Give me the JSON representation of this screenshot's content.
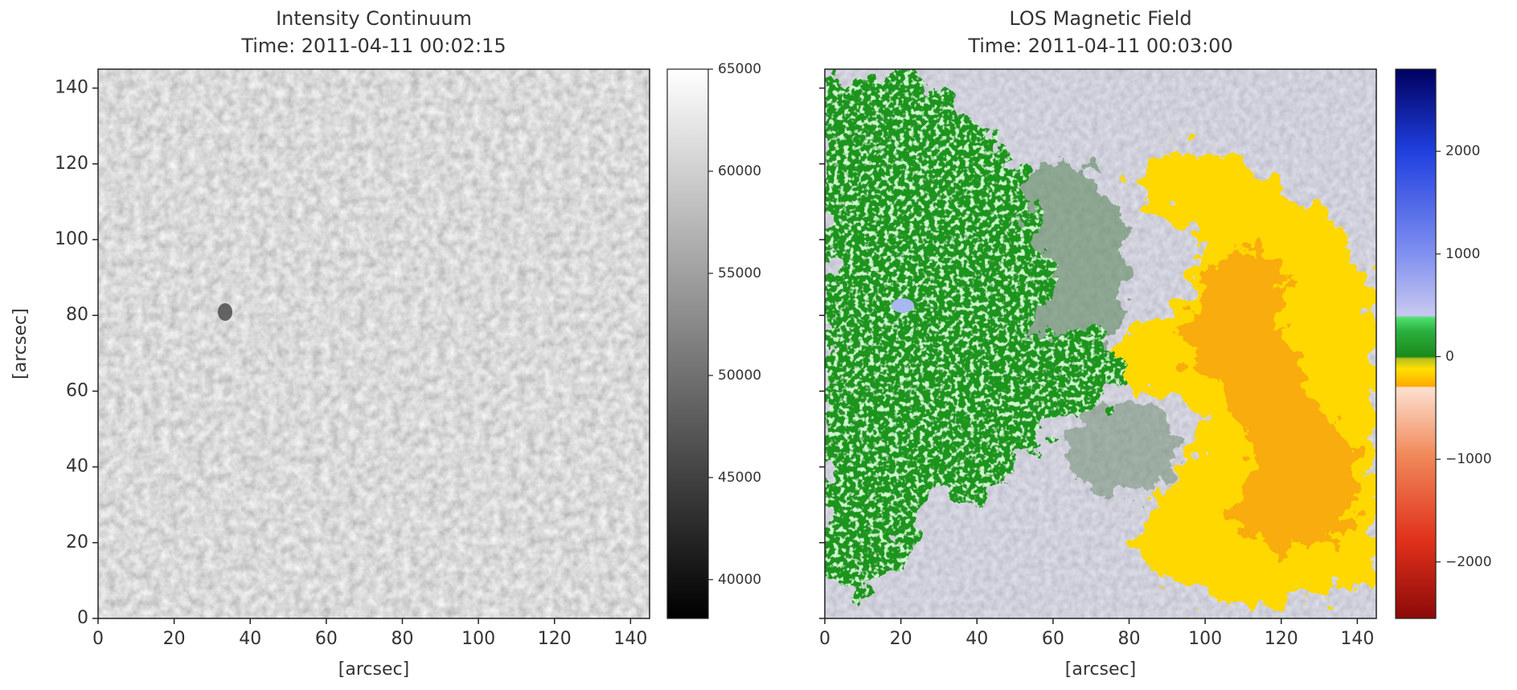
{
  "chart_data": [
    {
      "type": "heatmap",
      "title": "Intensity Continuum",
      "subtitle": "Time: 2011-04-11 00:02:15",
      "x_label": "[arcsec]",
      "y_label": "[arcsec]",
      "xlim": [
        0,
        145
      ],
      "ylim": [
        0,
        145
      ],
      "xticks": [
        0,
        20,
        40,
        60,
        80,
        100,
        120,
        140
      ],
      "yticks": [
        0,
        20,
        40,
        60,
        80,
        100,
        120,
        140
      ],
      "ytick_labels": true,
      "colorbar": {
        "lim": [
          38100,
          65000
        ],
        "ticks": [
          40000,
          45000,
          50000,
          55000,
          60000,
          65000
        ],
        "colormap": [
          {
            "value": 38100,
            "color": "#000000"
          },
          {
            "value": 65000,
            "color": "#ffffff"
          }
        ]
      }
    },
    {
      "type": "heatmap",
      "title": "LOS Magnetic Field",
      "subtitle": "Time: 2011-04-11 00:03:00",
      "x_label": "[arcsec]",
      "xlim": [
        0,
        145
      ],
      "ylim": [
        0,
        145
      ],
      "xticks": [
        0,
        20,
        40,
        60,
        80,
        100,
        120,
        140
      ],
      "yticks": [
        0,
        20,
        40,
        60,
        80,
        100,
        120,
        140
      ],
      "ytick_labels": false,
      "colorbar": {
        "lim": [
          -2550,
          2800
        ],
        "ticks": [
          {
            "value": -2000,
            "label": "−2000"
          },
          {
            "value": -1000,
            "label": "−1000"
          },
          0,
          1000,
          2000
        ],
        "colormap": [
          {
            "value": -2550,
            "color": "#8b0a0a"
          },
          {
            "value": -1800,
            "color": "#e0301a"
          },
          {
            "value": -950,
            "color": "#f08a5a"
          },
          {
            "value": -300,
            "color": "#fde0d0"
          },
          {
            "value": -290,
            "color": "#ffa800"
          },
          {
            "value": -120,
            "color": "#ffe000"
          },
          {
            "value": -20,
            "color": "#b8c020"
          },
          {
            "value": 0,
            "color": "#1a8a1a"
          },
          {
            "value": 250,
            "color": "#2cb040"
          },
          {
            "value": 380,
            "color": "#50e070"
          },
          {
            "value": 400,
            "color": "#c8c8f0"
          },
          {
            "value": 1000,
            "color": "#8090f0"
          },
          {
            "value": 2000,
            "color": "#2040e0"
          },
          {
            "value": 2800,
            "color": "#000060"
          }
        ]
      }
    }
  ]
}
